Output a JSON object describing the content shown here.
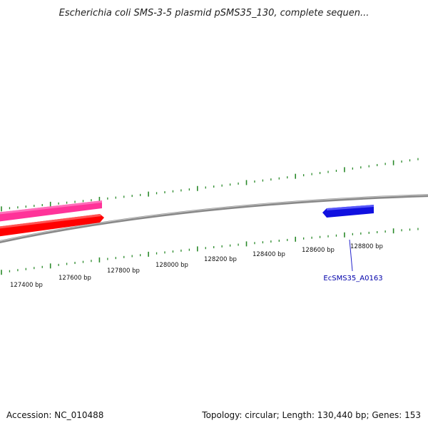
{
  "title": "Escherichia coli SMS-3-5 plasmid pSMS35_130, complete sequen...",
  "footer": {
    "accession": "Accession: NC_010488",
    "summary": "Topology: circular; Length: 130,440 bp; Genes: 153"
  },
  "ticks": {
    "labels": [
      "127400 bp",
      "127600 bp",
      "127800 bp",
      "128000 bp",
      "128200 bp",
      "128400 bp",
      "128600 bp",
      "128800 bp"
    ],
    "color": "#2a8a2a"
  },
  "genes": [
    {
      "label": "",
      "strand": "+",
      "color": "#ff3399"
    },
    {
      "label": "",
      "strand": "+",
      "color": "#ff0000"
    },
    {
      "label": "EcSMS35_A0163",
      "strand": "-",
      "color": "#1010e0"
    }
  ],
  "backbone_color": "#888888",
  "label_color": "#0000aa"
}
